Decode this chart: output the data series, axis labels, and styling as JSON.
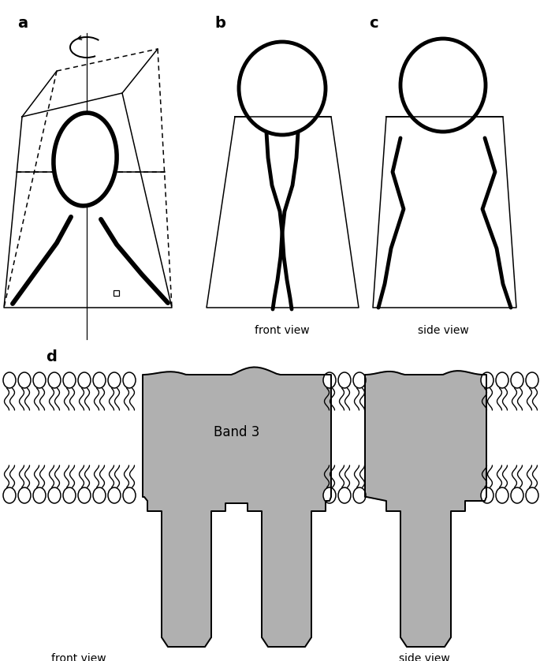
{
  "fig_width": 6.85,
  "fig_height": 8.38,
  "bg_color": "#ffffff",
  "line_color": "#000000",
  "thick_lw": 3.5,
  "thin_lw": 1.1,
  "gray_fill": "#b0b0b0",
  "label_a": "a",
  "label_b": "b",
  "label_c": "c",
  "label_d": "d",
  "front_view": "front view",
  "side_view": "side view",
  "band3_label": "Band 3"
}
